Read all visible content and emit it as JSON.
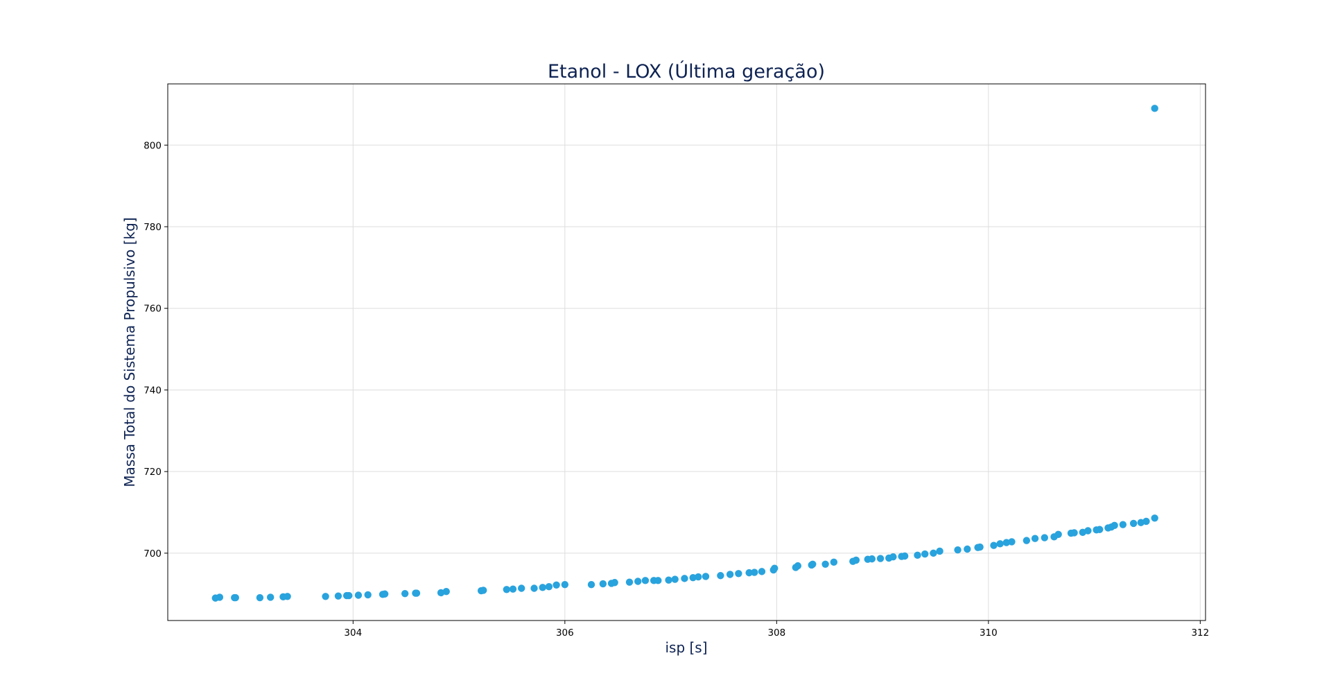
{
  "chart_data": {
    "type": "scatter",
    "title": "Etanol - LOX (Última geração)",
    "xlabel": "isp [s]",
    "ylabel": "Massa Total do Sistema Propulsivo [kg]",
    "xlim": [
      302.25,
      312.05
    ],
    "ylim": [
      683.5,
      815
    ],
    "xticks": [
      304,
      306,
      308,
      310,
      312
    ],
    "yticks": [
      700,
      720,
      740,
      760,
      780,
      800
    ],
    "grid": true,
    "legend": "none",
    "colors": {
      "marker": "#29a3dd",
      "grid": "#dddddd",
      "text": "#0d2252",
      "axis": "#000000"
    },
    "series": [
      {
        "x": [
          302.7,
          302.74,
          302.88,
          302.89,
          303.12,
          303.22,
          303.34,
          303.38,
          303.74,
          303.86,
          303.94,
          303.96,
          304.05,
          304.14,
          304.28,
          304.3,
          304.49,
          304.59,
          304.6,
          304.83,
          304.88,
          305.21,
          305.23,
          305.45,
          305.51,
          305.59,
          305.71,
          305.79,
          305.85,
          305.92,
          306.0,
          306.25,
          306.36,
          306.44,
          306.47,
          306.61,
          306.69,
          306.76,
          306.84,
          306.88,
          306.98,
          307.04,
          307.13,
          307.21,
          307.26,
          307.33,
          307.47,
          307.56,
          307.64,
          307.74,
          307.79,
          307.86,
          307.97,
          307.98,
          308.18,
          308.2,
          308.33,
          308.34,
          308.46,
          308.54,
          308.72,
          308.75,
          308.86,
          308.9,
          308.98,
          309.06,
          309.1,
          309.18,
          309.21,
          309.33,
          309.4,
          309.48,
          309.54,
          309.71,
          309.8,
          309.9,
          309.92,
          310.05,
          310.11,
          310.17,
          310.22,
          310.36,
          310.44,
          310.53,
          310.62,
          310.66,
          310.78,
          310.81,
          310.89,
          310.94,
          311.02,
          311.05,
          311.13,
          311.16,
          311.19,
          311.27,
          311.37,
          311.44,
          311.49,
          311.57,
          311.57
        ],
        "y": [
          689.0,
          689.2,
          689.1,
          689.1,
          689.1,
          689.2,
          689.3,
          689.4,
          689.4,
          689.5,
          689.6,
          689.6,
          689.7,
          689.8,
          689.9,
          690.0,
          690.1,
          690.2,
          690.2,
          690.3,
          690.6,
          690.8,
          690.9,
          691.1,
          691.2,
          691.4,
          691.4,
          691.6,
          691.8,
          692.2,
          692.3,
          692.3,
          692.5,
          692.6,
          692.8,
          692.9,
          693.1,
          693.3,
          693.3,
          693.3,
          693.4,
          693.6,
          693.8,
          694.0,
          694.2,
          694.3,
          694.5,
          694.8,
          695.0,
          695.2,
          695.3,
          695.5,
          695.9,
          696.3,
          696.5,
          696.9,
          697.1,
          697.3,
          697.3,
          697.8,
          698.0,
          698.3,
          698.5,
          698.6,
          698.7,
          698.8,
          699.1,
          699.2,
          699.3,
          699.5,
          699.8,
          700.0,
          700.5,
          700.8,
          701.0,
          701.4,
          701.5,
          701.9,
          702.3,
          702.6,
          702.8,
          703.1,
          703.6,
          703.8,
          704.0,
          704.6,
          704.9,
          705.0,
          705.1,
          705.5,
          705.7,
          705.8,
          706.2,
          706.4,
          706.8,
          707.0,
          707.3,
          707.5,
          707.8,
          708.6,
          809.0
        ]
      }
    ]
  }
}
